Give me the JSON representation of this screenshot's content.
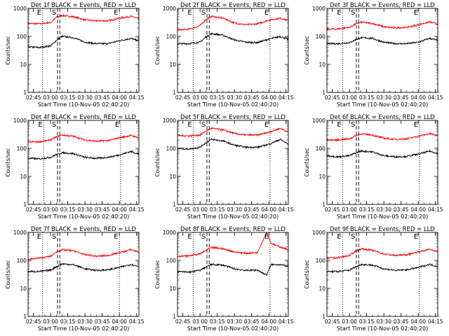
{
  "chart_data": [
    {
      "type": "line",
      "title": "Det 1f BLACK = Events, RED = LLD",
      "xlabel": "Start Time (10-Nov-05 02:40:20)",
      "ylabel": "Counts/sec",
      "yscale": "log",
      "ylim": [
        1,
        1000
      ],
      "xticks": [
        "02:45",
        "03:00",
        "03:15",
        "03:30",
        "03:45",
        "04:00",
        "04:15"
      ],
      "yticks": [
        "1",
        "10",
        "100",
        "1000"
      ],
      "markers": [
        {
          "label": "E",
          "style": "dotted",
          "t": "02:53"
        },
        {
          "label": "S",
          "style": "dashed",
          "t": "03:06"
        },
        {
          "label": "",
          "style": "dashed",
          "t": "03:08"
        },
        {
          "label": "E",
          "style": "dotted",
          "t": "04:00"
        }
      ],
      "series": [
        {
          "name": "RED",
          "color": "#ff0000",
          "x": [
            "02:40",
            "02:50",
            "03:00",
            "03:05",
            "03:10",
            "03:20",
            "03:30",
            "03:40",
            "03:50",
            "04:00",
            "04:10",
            "04:17"
          ],
          "y": [
            290,
            280,
            310,
            480,
            560,
            500,
            390,
            360,
            360,
            450,
            520,
            420
          ]
        },
        {
          "name": "BLACK",
          "color": "#000000",
          "x": [
            "02:40",
            "02:50",
            "03:00",
            "03:05",
            "03:10",
            "03:20",
            "03:30",
            "03:40",
            "03:50",
            "04:00",
            "04:10",
            "04:17"
          ],
          "y": [
            42,
            40,
            46,
            72,
            100,
            90,
            62,
            55,
            55,
            70,
            85,
            68
          ]
        }
      ]
    },
    {
      "type": "line",
      "title": "Det 2f BLACK = Events, RED = LLD",
      "xlabel": "Start Time (10-Nov-05 02:40:20)",
      "ylabel": "Counts/sec",
      "yscale": "log",
      "ylim": [
        1,
        1000
      ],
      "xticks": [
        "02:45",
        "03:00",
        "03:15",
        "03:30",
        "03:45",
        "04:00",
        "04:15"
      ],
      "yticks": [
        "1",
        "10",
        "100",
        "1000"
      ],
      "markers": [
        {
          "label": "E",
          "style": "dotted",
          "t": "02:54"
        },
        {
          "label": "S",
          "style": "dashed",
          "t": "03:06"
        },
        {
          "label": "",
          "style": "dashed",
          "t": "03:08"
        },
        {
          "label": "E",
          "style": "dotted",
          "t": "04:01"
        }
      ],
      "series": [
        {
          "name": "RED",
          "color": "#ff0000",
          "x": [
            "02:40",
            "02:50",
            "03:00",
            "03:05",
            "03:10",
            "03:20",
            "03:30",
            "03:40",
            "03:50",
            "04:00",
            "04:10",
            "04:17"
          ],
          "y": [
            170,
            180,
            240,
            400,
            520,
            450,
            300,
            260,
            280,
            380,
            450,
            360
          ]
        },
        {
          "name": "BLACK",
          "color": "#000000",
          "x": [
            "02:40",
            "02:50",
            "03:00",
            "03:05",
            "03:10",
            "03:20",
            "03:30",
            "03:40",
            "03:50",
            "04:00",
            "04:10",
            "04:17"
          ],
          "y": [
            55,
            55,
            62,
            95,
            125,
            110,
            75,
            62,
            60,
            80,
            100,
            78
          ]
        }
      ]
    },
    {
      "type": "line",
      "title": "Det 3f BLACK = Events, RED = LLD",
      "xlabel": "Start Time (10-Nov-05 02:40:20)",
      "ylabel": "Counts/sec",
      "yscale": "log",
      "ylim": [
        1,
        1000
      ],
      "xticks": [
        "02:45",
        "03:00",
        "03:15",
        "03:30",
        "03:45",
        "04:00",
        "04:15"
      ],
      "yticks": [
        "1",
        "10",
        "100",
        "1000"
      ],
      "markers": [
        {
          "label": "E",
          "style": "dotted",
          "t": "02:54"
        },
        {
          "label": "S",
          "style": "dashed",
          "t": "03:06"
        },
        {
          "label": "",
          "style": "dashed",
          "t": "03:08"
        },
        {
          "label": "E",
          "style": "dotted",
          "t": "04:01"
        }
      ],
      "series": [
        {
          "name": "RED",
          "color": "#ff0000",
          "x": [
            "02:40",
            "02:50",
            "03:00",
            "03:05",
            "03:10",
            "03:20",
            "03:30",
            "03:40",
            "03:50",
            "04:00",
            "04:10",
            "04:17"
          ],
          "y": [
            180,
            185,
            210,
            270,
            320,
            290,
            220,
            200,
            210,
            260,
            330,
            270
          ]
        },
        {
          "name": "BLACK",
          "color": "#000000",
          "x": [
            "02:40",
            "02:50",
            "03:00",
            "03:05",
            "03:10",
            "03:20",
            "03:30",
            "03:40",
            "03:50",
            "04:00",
            "04:10",
            "04:17"
          ],
          "y": [
            55,
            55,
            60,
            75,
            90,
            85,
            62,
            55,
            55,
            62,
            85,
            72
          ]
        }
      ]
    },
    {
      "type": "line",
      "title": "Det 4f BLACK = Events, RED = LLD",
      "xlabel": "Start Time (10-Nov-05 02:40:20)",
      "ylabel": "Counts/sec",
      "yscale": "log",
      "ylim": [
        1,
        1000
      ],
      "xticks": [
        "02:45",
        "03:00",
        "03:15",
        "03:30",
        "03:45",
        "04:00",
        "04:15"
      ],
      "yticks": [
        "1",
        "10",
        "100",
        "1000"
      ],
      "markers": [
        {
          "label": "E",
          "style": "dotted",
          "t": "02:54"
        },
        {
          "label": "S",
          "style": "dashed",
          "t": "03:06"
        },
        {
          "label": "",
          "style": "dashed",
          "t": "03:08"
        },
        {
          "label": "E",
          "style": "dotted",
          "t": "04:01"
        }
      ],
      "series": [
        {
          "name": "RED",
          "color": "#ff0000",
          "x": [
            "02:40",
            "02:50",
            "03:00",
            "03:05",
            "03:10",
            "03:20",
            "03:30",
            "03:40",
            "03:50",
            "04:00",
            "04:10",
            "04:17"
          ],
          "y": [
            170,
            170,
            200,
            260,
            300,
            270,
            200,
            180,
            190,
            240,
            290,
            240
          ]
        },
        {
          "name": "BLACK",
          "color": "#000000",
          "x": [
            "02:40",
            "02:50",
            "03:00",
            "03:05",
            "03:10",
            "03:20",
            "03:30",
            "03:40",
            "03:50",
            "04:00",
            "04:10",
            "04:17"
          ],
          "y": [
            45,
            42,
            48,
            60,
            70,
            65,
            48,
            44,
            48,
            58,
            78,
            62
          ]
        }
      ]
    },
    {
      "type": "line",
      "title": "Det 5f BLACK = Events, RED = LLD",
      "xlabel": "Start Time (10-Nov-05 02:40:20)",
      "ylabel": "Counts/sec",
      "yscale": "log",
      "ylim": [
        1,
        1000
      ],
      "xticks": [
        "02:45",
        "03:00",
        "03:15",
        "03:30",
        "03:45",
        "04:00",
        "04:15"
      ],
      "yticks": [
        "1",
        "10",
        "100",
        "1000"
      ],
      "markers": [
        {
          "label": "E",
          "style": "dotted",
          "t": "02:54"
        },
        {
          "label": "S",
          "style": "dashed",
          "t": "03:06"
        },
        {
          "label": "",
          "style": "dashed",
          "t": "03:08"
        },
        {
          "label": "E",
          "style": "dotted",
          "t": "04:01"
        }
      ],
      "series": [
        {
          "name": "RED",
          "color": "#ff0000",
          "x": [
            "02:40",
            "02:50",
            "03:00",
            "03:05",
            "03:10",
            "03:20",
            "03:30",
            "03:40",
            "03:50",
            "04:00",
            "04:10",
            "04:17"
          ],
          "y": [
            290,
            280,
            300,
            420,
            520,
            460,
            340,
            300,
            300,
            380,
            520,
            380
          ]
        },
        {
          "name": "BLACK",
          "color": "#000000",
          "x": [
            "02:40",
            "02:50",
            "03:00",
            "03:05",
            "03:10",
            "03:20",
            "03:30",
            "03:40",
            "03:50",
            "04:00",
            "04:10",
            "04:17"
          ],
          "y": [
            100,
            95,
            110,
            160,
            210,
            185,
            130,
            110,
            110,
            140,
            210,
            140
          ]
        }
      ]
    },
    {
      "type": "line",
      "title": "Det 6f BLACK = Events, RED = LLD",
      "xlabel": "Start Time (10-Nov-05 02:40:20)",
      "ylabel": "Counts/sec",
      "yscale": "log",
      "ylim": [
        1,
        1000
      ],
      "xticks": [
        "02:45",
        "03:00",
        "03:15",
        "03:30",
        "03:45",
        "04:00",
        "04:15"
      ],
      "yticks": [
        "1",
        "10",
        "100",
        "1000"
      ],
      "markers": [
        {
          "label": "E",
          "style": "dotted",
          "t": "02:54"
        },
        {
          "label": "S",
          "style": "dashed",
          "t": "03:06"
        },
        {
          "label": "",
          "style": "dashed",
          "t": "03:08"
        },
        {
          "label": "E",
          "style": "dotted",
          "t": "04:01"
        }
      ],
      "series": [
        {
          "name": "RED",
          "color": "#ff0000",
          "x": [
            "02:40",
            "02:50",
            "03:00",
            "03:05",
            "03:10",
            "03:20",
            "03:30",
            "03:40",
            "03:50",
            "04:00",
            "04:10",
            "04:17"
          ],
          "y": [
            200,
            200,
            220,
            280,
            330,
            300,
            230,
            210,
            220,
            270,
            340,
            280
          ]
        },
        {
          "name": "BLACK",
          "color": "#000000",
          "x": [
            "02:40",
            "02:50",
            "03:00",
            "03:05",
            "03:10",
            "03:20",
            "03:30",
            "03:40",
            "03:50",
            "04:00",
            "04:10",
            "04:17"
          ],
          "y": [
            55,
            50,
            55,
            68,
            80,
            75,
            55,
            50,
            52,
            62,
            80,
            65
          ]
        }
      ]
    },
    {
      "type": "line",
      "title": "Det 7f BLACK = Events, RED = LLD",
      "xlabel": "Start Time (10-Nov-05 02:40:20)",
      "ylabel": "Counts/sec",
      "yscale": "log",
      "ylim": [
        1,
        1000
      ],
      "xticks": [
        "02:45",
        "03:00",
        "03:15",
        "03:30",
        "03:45",
        "04:00",
        "04:15"
      ],
      "yticks": [
        "1",
        "10",
        "100",
        "1000"
      ],
      "markers": [
        {
          "label": "E",
          "style": "dotted",
          "t": "02:53"
        },
        {
          "label": "S",
          "style": "dashed",
          "t": "03:06"
        },
        {
          "label": "",
          "style": "dashed",
          "t": "03:08"
        },
        {
          "label": "E",
          "style": "dotted",
          "t": "04:00"
        }
      ],
      "series": [
        {
          "name": "RED",
          "color": "#ff0000",
          "x": [
            "02:40",
            "02:50",
            "03:00",
            "03:05",
            "03:10",
            "03:20",
            "03:30",
            "03:40",
            "03:50",
            "04:00",
            "04:10",
            "04:17"
          ],
          "y": [
            110,
            120,
            140,
            200,
            240,
            220,
            160,
            140,
            150,
            190,
            240,
            200
          ]
        },
        {
          "name": "BLACK",
          "color": "#000000",
          "x": [
            "02:40",
            "02:50",
            "03:00",
            "03:05",
            "03:10",
            "03:20",
            "03:30",
            "03:40",
            "03:50",
            "04:00",
            "04:10",
            "04:17"
          ],
          "y": [
            40,
            40,
            45,
            60,
            75,
            70,
            50,
            44,
            46,
            56,
            72,
            60
          ]
        }
      ]
    },
    {
      "type": "line",
      "title": "Det 8f BLACK = Events, RED = LLD",
      "xlabel": "Start Time (10-Nov-05 02:40:20)",
      "ylabel": "Counts/sec",
      "yscale": "log",
      "ylim": [
        1,
        1000
      ],
      "xticks": [
        "02:45",
        "03:00",
        "03:15",
        "03:30",
        "03:45",
        "04:00",
        "04:15"
      ],
      "yticks": [
        "1",
        "10",
        "100",
        "1000"
      ],
      "markers": [
        {
          "label": "E",
          "style": "dotted",
          "t": "02:54"
        },
        {
          "label": "S",
          "style": "dashed",
          "t": "03:06"
        },
        {
          "label": "",
          "style": "dashed",
          "t": "03:08"
        },
        {
          "label": "E",
          "style": "dotted",
          "t": "04:01"
        }
      ],
      "series": [
        {
          "name": "RED",
          "color": "#ff0000",
          "x": [
            "02:40",
            "02:50",
            "03:00",
            "03:05",
            "03:10",
            "03:20",
            "03:30",
            "03:40",
            "03:50",
            "03:58",
            "04:02",
            "04:10",
            "04:17"
          ],
          "y": [
            140,
            145,
            170,
            230,
            290,
            260,
            200,
            180,
            190,
            1000,
            400,
            300,
            240
          ]
        },
        {
          "name": "BLACK",
          "color": "#000000",
          "x": [
            "02:40",
            "02:50",
            "03:00",
            "03:05",
            "03:10",
            "03:20",
            "03:30",
            "03:40",
            "03:50",
            "03:58",
            "04:02",
            "04:10",
            "04:17"
          ],
          "y": [
            40,
            38,
            44,
            58,
            72,
            68,
            50,
            44,
            45,
            30,
            70,
            72,
            60
          ]
        }
      ]
    },
    {
      "type": "line",
      "title": "Det 9f BLACK = Events, RED = LLD",
      "xlabel": "Start Time (10-Nov-05 02:40:20)",
      "ylabel": "Counts/sec",
      "yscale": "log",
      "ylim": [
        1,
        1000
      ],
      "xticks": [
        "02:45",
        "03:00",
        "03:15",
        "03:30",
        "03:45",
        "04:00",
        "04:15"
      ],
      "yticks": [
        "1",
        "10",
        "100",
        "1000"
      ],
      "markers": [
        {
          "label": "E",
          "style": "dotted",
          "t": "02:54"
        },
        {
          "label": "S",
          "style": "dashed",
          "t": "03:06"
        },
        {
          "label": "",
          "style": "dashed",
          "t": "03:08"
        },
        {
          "label": "E",
          "style": "dotted",
          "t": "04:01"
        }
      ],
      "series": [
        {
          "name": "RED",
          "color": "#ff0000",
          "x": [
            "02:40",
            "02:50",
            "03:00",
            "03:05",
            "03:10",
            "03:20",
            "03:30",
            "03:40",
            "03:50",
            "04:00",
            "04:10",
            "04:17"
          ],
          "y": [
            120,
            125,
            150,
            210,
            260,
            230,
            170,
            150,
            160,
            200,
            250,
            210
          ]
        },
        {
          "name": "BLACK",
          "color": "#000000",
          "x": [
            "02:40",
            "02:50",
            "03:00",
            "03:05",
            "03:10",
            "03:20",
            "03:30",
            "03:40",
            "03:50",
            "04:00",
            "04:10",
            "04:17"
          ],
          "y": [
            40,
            40,
            45,
            58,
            72,
            68,
            50,
            44,
            46,
            56,
            72,
            60
          ]
        }
      ]
    }
  ]
}
